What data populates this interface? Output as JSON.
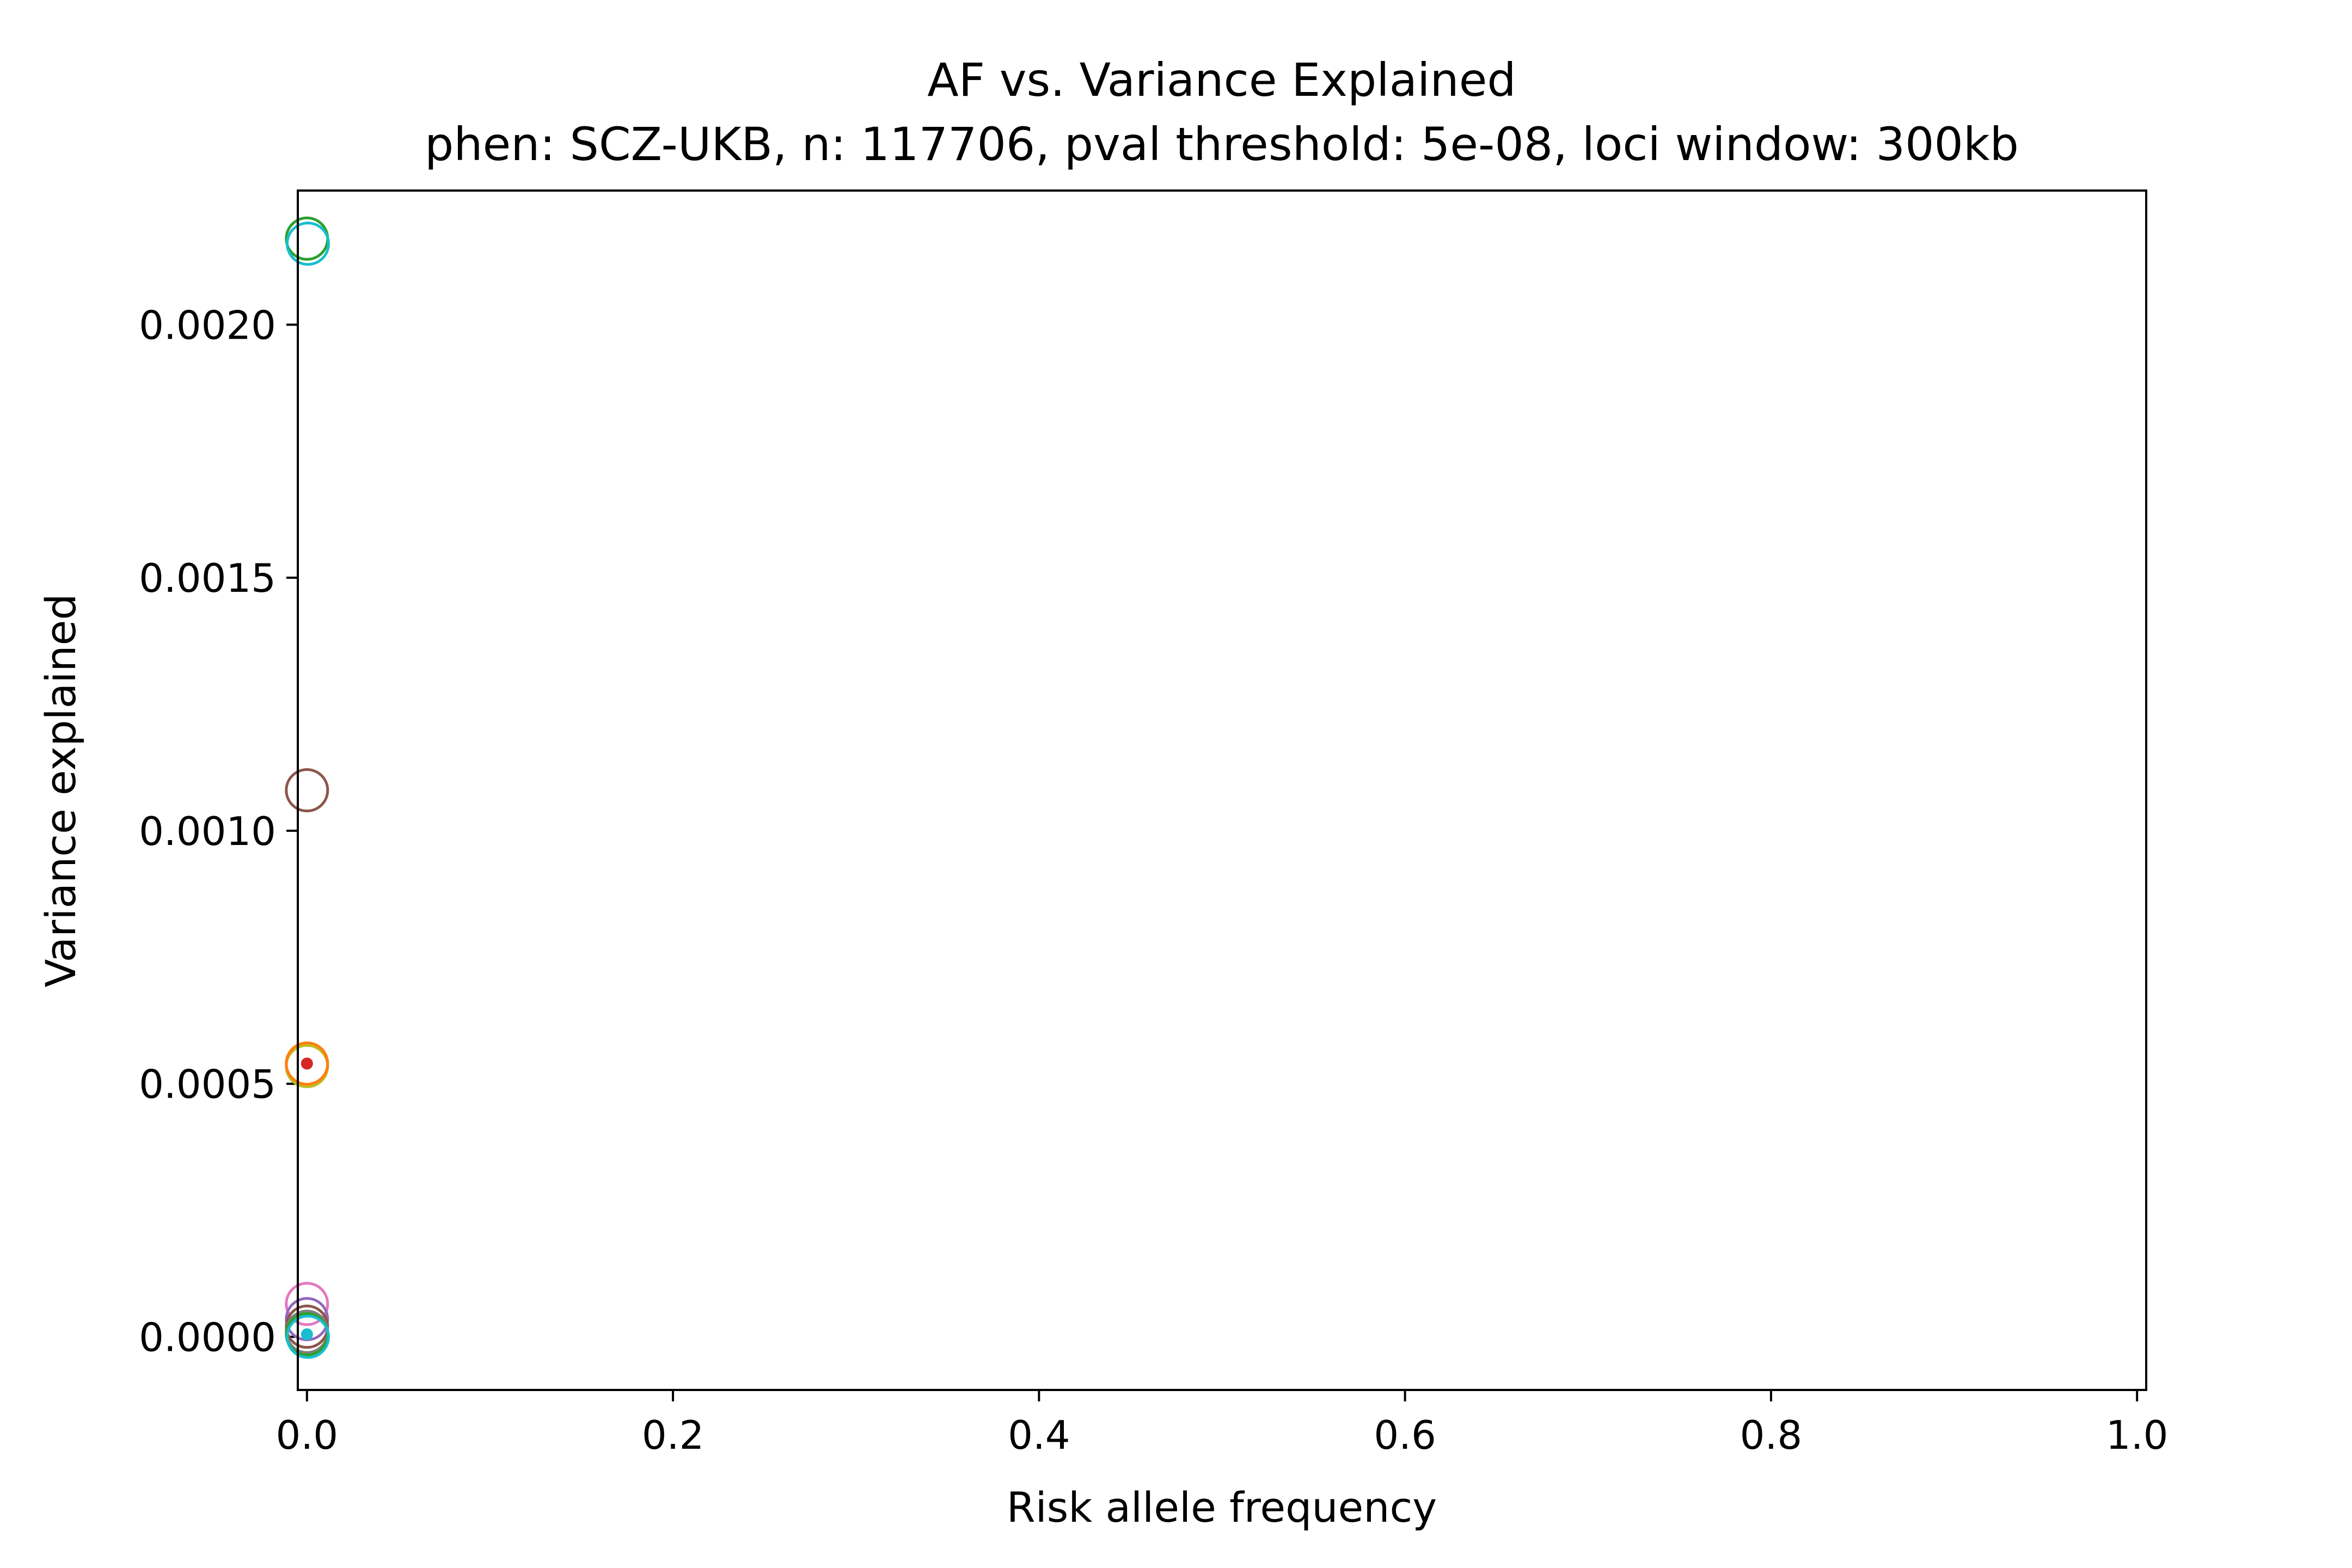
{
  "chart_data": {
    "type": "scatter",
    "title": "AF vs. Variance Explained",
    "subtitle": "phen: SCZ-UKB, n: 117706, pval threshold: 5e-08, loci window: 300kb",
    "xlabel": "Risk allele frequency",
    "ylabel": "Variance explained",
    "xlim": [
      -0.005,
      1.005
    ],
    "ylim": [
      -0.000105,
      0.002265
    ],
    "x_ticks": [
      0.0,
      0.2,
      0.4,
      0.6,
      0.8,
      1.0
    ],
    "x_tick_labels": [
      "0.0",
      "0.2",
      "0.4",
      "0.6",
      "0.8",
      "1.0"
    ],
    "y_ticks": [
      0.0,
      0.0005,
      0.001,
      0.0015,
      0.002
    ],
    "y_tick_labels": [
      "0.0000",
      "0.0005",
      "0.0010",
      "0.0015",
      "0.0020"
    ],
    "grid": false,
    "points": [
      {
        "x": 0.0,
        "y": 0.00217,
        "color": "#2ca02c",
        "marker": "open-circle"
      },
      {
        "x": 0.0005,
        "y": 0.00216,
        "color": "#17becf",
        "marker": "open-circle"
      },
      {
        "x": 0.0,
        "y": 0.00108,
        "color": "#8c564b",
        "marker": "open-circle"
      },
      {
        "x": 0.0,
        "y": 0.000535,
        "color": "#bcbd22",
        "marker": "open-circle"
      },
      {
        "x": 0.0,
        "y": 0.00054,
        "color": "#ff7f0e",
        "marker": "open-circle"
      },
      {
        "x": 0.0,
        "y": 0.00054,
        "color": "#d62728",
        "marker": "dot"
      },
      {
        "x": 0.0,
        "y": 6.5e-05,
        "color": "#e377c2",
        "marker": "open-circle"
      },
      {
        "x": 0.0,
        "y": 3.5e-05,
        "color": "#9467bd",
        "marker": "open-circle"
      },
      {
        "x": 0.0,
        "y": 2e-05,
        "color": "#8c564b",
        "marker": "open-circle"
      },
      {
        "x": 0.0,
        "y": 1e-05,
        "color": "#7f7f7f",
        "marker": "open-circle"
      },
      {
        "x": 0.0,
        "y": 5e-06,
        "color": "#2ca02c",
        "marker": "open-circle"
      },
      {
        "x": 0.0005,
        "y": 0.0,
        "color": "#17becf",
        "marker": "open-circle"
      },
      {
        "x": 0.0,
        "y": 5e-06,
        "color": "#17becf",
        "marker": "dot"
      }
    ]
  }
}
